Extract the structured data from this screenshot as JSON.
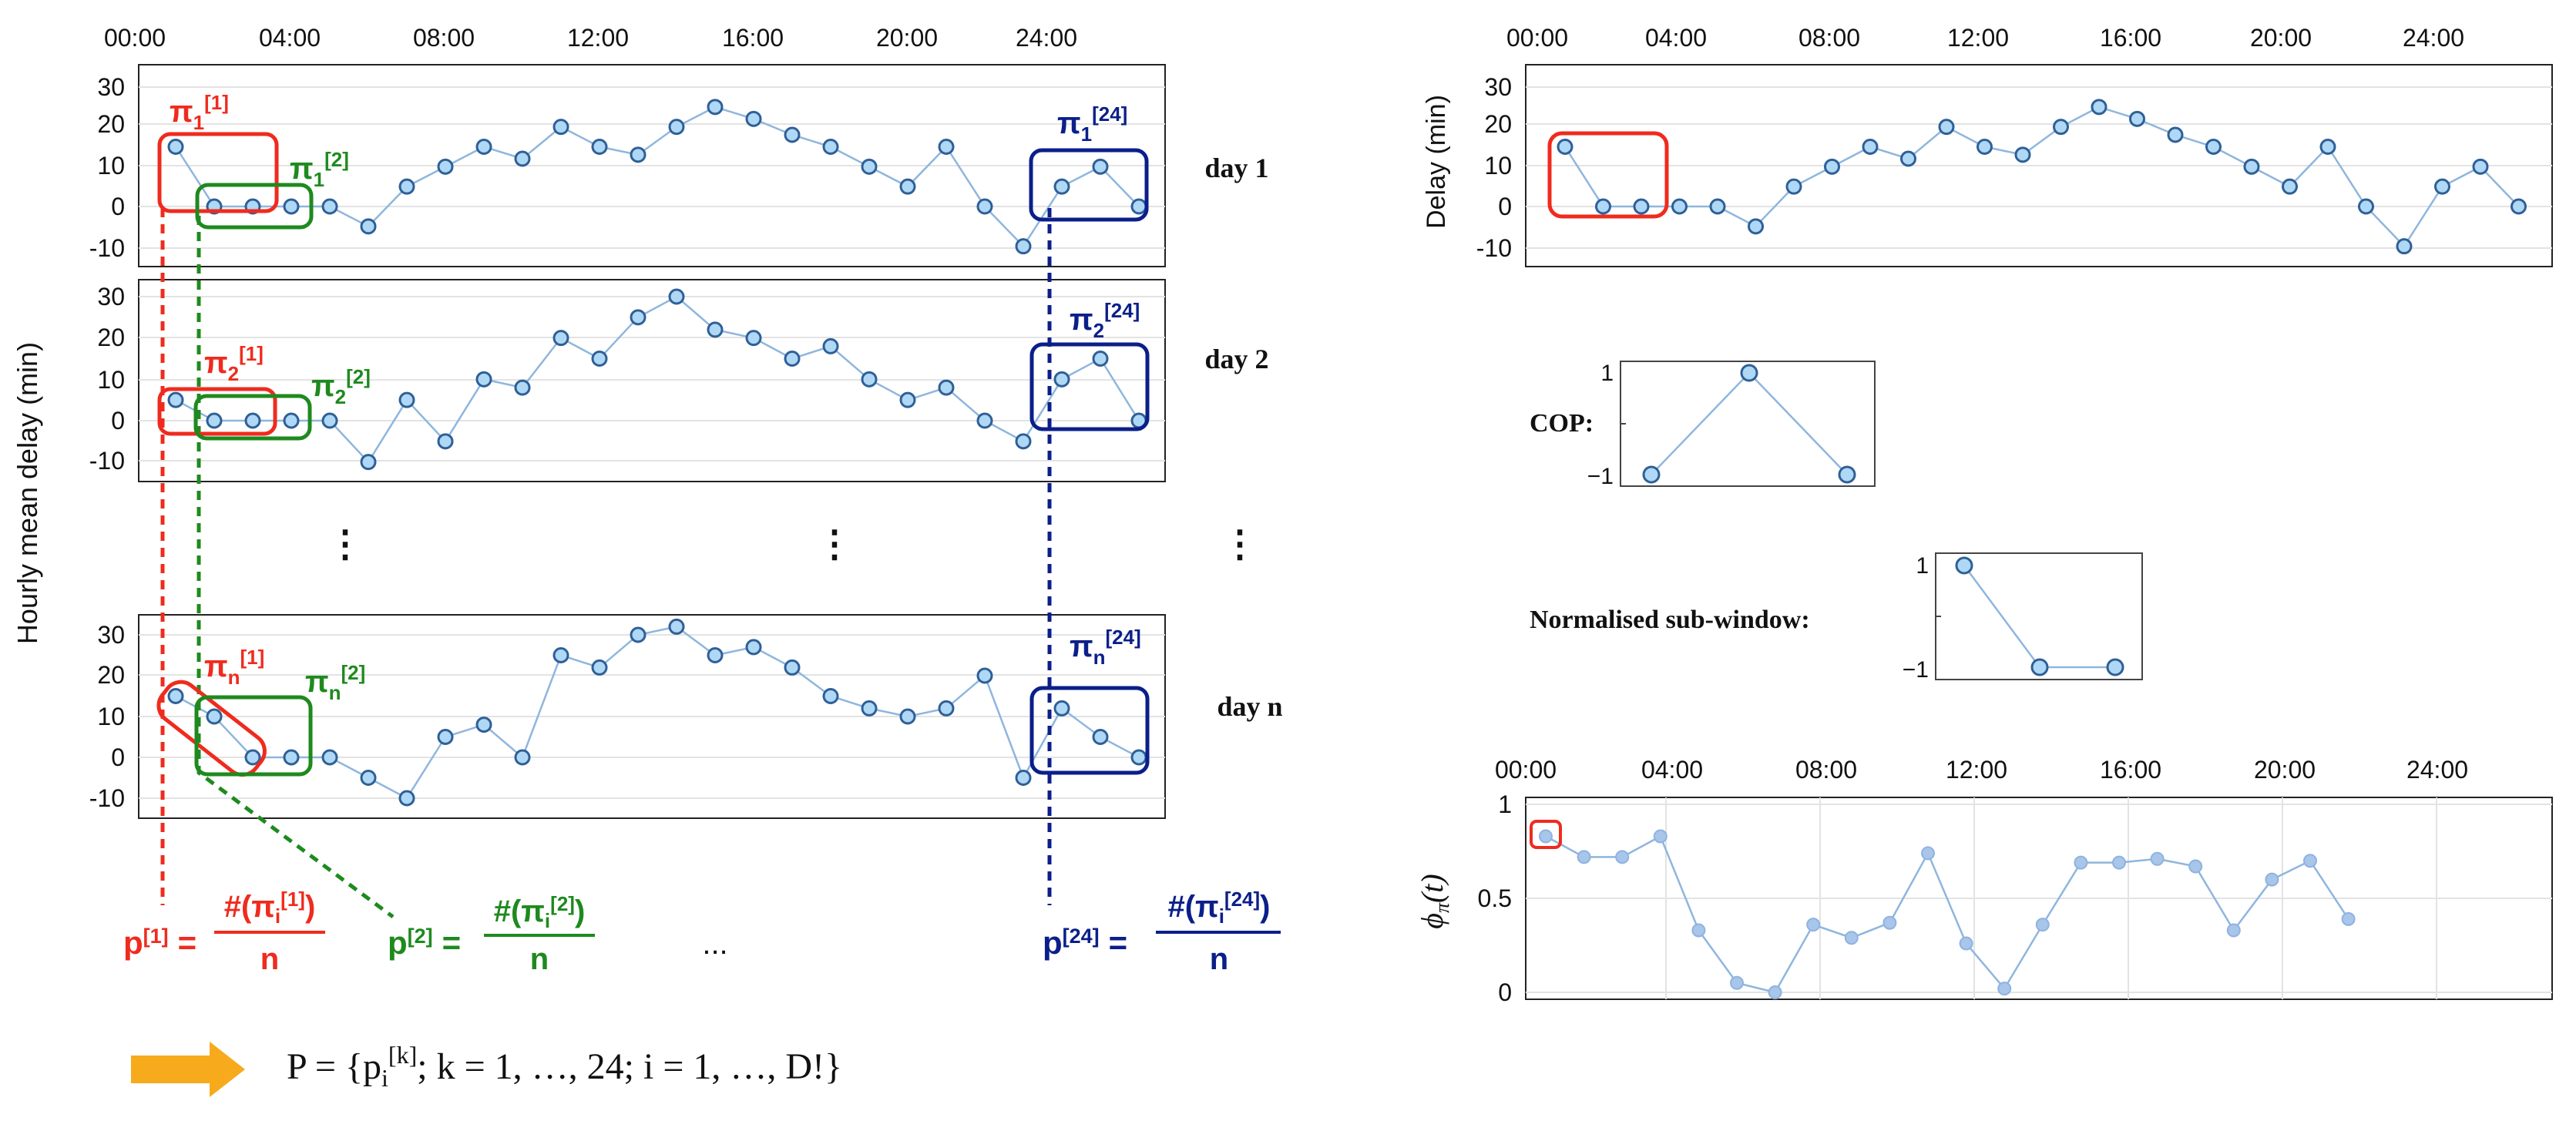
{
  "colors": {
    "red": "#ef2b1e",
    "green": "#1e8a1e",
    "navy": "#0b1f8a",
    "orange": "#f7aa1b",
    "series_line": "#8fb6dd",
    "point_fill": "#aed8f5",
    "point_stroke": "#2f5f96",
    "phi_fill": "#a8c5ea"
  },
  "left": {
    "time_axis": {
      "labels": [
        "00:00",
        "04:00",
        "08:00",
        "12:00",
        "16:00",
        "20:00",
        "24:00"
      ]
    },
    "ylabel": "Hourly mean delay (min)",
    "days": [
      {
        "label": "day 1",
        "y_ticks": [
          "30",
          "20",
          "10",
          "0",
          "-10"
        ],
        "values": [
          15,
          0,
          0,
          0,
          0,
          -5,
          5,
          10,
          15,
          12,
          20,
          15,
          13,
          20,
          25,
          22,
          18,
          15,
          10,
          5,
          15,
          0,
          -10,
          5,
          10,
          0
        ],
        "patterns": [
          {
            "base": "π",
            "sub": "1",
            "sup": "[1]",
            "color": "red"
          },
          {
            "base": "π",
            "sub": "1",
            "sup": "[2]",
            "color": "green"
          },
          {
            "base": "π",
            "sub": "1",
            "sup": "[24]",
            "color": "navy"
          }
        ]
      },
      {
        "label": "day 2",
        "y_ticks": [
          "30",
          "20",
          "10",
          "0",
          "-10"
        ],
        "values": [
          5,
          0,
          0,
          0,
          0,
          -10,
          5,
          -5,
          10,
          8,
          20,
          15,
          25,
          30,
          22,
          20,
          15,
          18,
          10,
          5,
          8,
          0,
          -5,
          10,
          15,
          0
        ],
        "patterns": [
          {
            "base": "π",
            "sub": "2",
            "sup": "[1]",
            "color": "red"
          },
          {
            "base": "π",
            "sub": "2",
            "sup": "[2]",
            "color": "green"
          },
          {
            "base": "π",
            "sub": "2",
            "sup": "[24]",
            "color": "navy"
          }
        ]
      },
      {
        "label": "day n",
        "y_ticks": [
          "30",
          "20",
          "10",
          "0",
          "-10"
        ],
        "values": [
          15,
          10,
          0,
          0,
          0,
          -5,
          -10,
          5,
          8,
          0,
          25,
          22,
          30,
          32,
          25,
          27,
          22,
          15,
          12,
          10,
          12,
          20,
          -5,
          12,
          5,
          0
        ],
        "patterns": [
          {
            "base": "π",
            "sub": "n",
            "sup": "[1]",
            "color": "red"
          },
          {
            "base": "π",
            "sub": "n",
            "sup": "[2]",
            "color": "green"
          },
          {
            "base": "π",
            "sub": "n",
            "sup": "[24]",
            "color": "navy"
          }
        ]
      }
    ],
    "ellipsis_vertical": "⋮",
    "probabilities": [
      {
        "lhs": "p",
        "lhs_sup": "[1]",
        "eq": "=",
        "num_pre": "#(π",
        "num_sub": "i",
        "num_sup": "[1]",
        "num_post": ")",
        "den": "n",
        "color": "red"
      },
      {
        "lhs": "p",
        "lhs_sup": "[2]",
        "eq": "=",
        "num_pre": "#(π",
        "num_sub": "i",
        "num_sup": "[2]",
        "num_post": ")",
        "den": "n",
        "color": "green"
      },
      {
        "lhs": "p",
        "lhs_sup": "[24]",
        "eq": "=",
        "num_pre": "#(π",
        "num_sub": "i",
        "num_sup": "[24]",
        "num_post": ")",
        "den": "n",
        "color": "navy"
      }
    ],
    "prob_ellipsis": "...",
    "set_formula": {
      "pre": "P = {p",
      "sub": "i",
      "sup": "[k]",
      "post": "; k = 1, …, 24;  i = 1, …, D!}"
    }
  },
  "right": {
    "delay_chart": {
      "ylabel": "Delay (min)",
      "x_labels": [
        "00:00",
        "04:00",
        "08:00",
        "12:00",
        "16:00",
        "20:00",
        "24:00"
      ],
      "y_ticks": [
        "30",
        "20",
        "10",
        "0",
        "-10"
      ],
      "values": [
        15,
        0,
        0,
        0,
        0,
        -5,
        5,
        10,
        15,
        12,
        20,
        15,
        13,
        20,
        25,
        22,
        18,
        15,
        10,
        5,
        15,
        0,
        -10,
        5,
        10,
        0
      ]
    },
    "cop": {
      "label": "COP:",
      "values": [
        -1,
        1,
        -1
      ],
      "y_ticks": [
        "1",
        "−1"
      ]
    },
    "normalised": {
      "label": "Normalised sub-window:",
      "values": [
        1,
        -1,
        -1
      ],
      "y_ticks": [
        "1",
        "−1"
      ]
    },
    "phi_chart": {
      "ylabel_main": "ϕ",
      "ylabel_sub": "π",
      "ylabel_arg": "(t)",
      "x_labels": [
        "00:00",
        "04:00",
        "08:00",
        "12:00",
        "16:00",
        "20:00",
        "24:00"
      ],
      "y_ticks": [
        "1",
        "0.5",
        "0"
      ],
      "values": [
        0.83,
        0.72,
        0.72,
        0.83,
        0.33,
        0.05,
        0.0,
        0.36,
        0.29,
        0.37,
        0.74,
        0.26,
        0.02,
        0.36,
        0.69,
        0.69,
        0.71,
        0.67,
        0.33,
        0.6,
        0.7,
        0.39
      ]
    }
  }
}
